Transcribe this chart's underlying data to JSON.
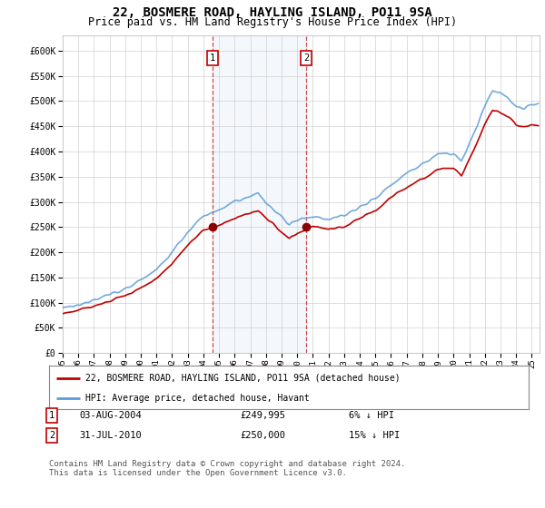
{
  "title": "22, BOSMERE ROAD, HAYLING ISLAND, PO11 9SA",
  "subtitle": "Price paid vs. HM Land Registry's House Price Index (HPI)",
  "title_fontsize": 10,
  "subtitle_fontsize": 8.5,
  "ylabel_ticks": [
    "£0",
    "£50K",
    "£100K",
    "£150K",
    "£200K",
    "£250K",
    "£300K",
    "£350K",
    "£400K",
    "£450K",
    "£500K",
    "£550K",
    "£600K"
  ],
  "ytick_values": [
    0,
    50000,
    100000,
    150000,
    200000,
    250000,
    300000,
    350000,
    400000,
    450000,
    500000,
    550000,
    600000
  ],
  "ylim": [
    0,
    630000
  ],
  "xlim_start": 1995.0,
  "xlim_end": 2025.5,
  "sale1_x": 2004.59,
  "sale1_y": 249995,
  "sale2_x": 2010.58,
  "sale2_y": 250000,
  "sale1_label": "03-AUG-2004",
  "sale1_price": "£249,995",
  "sale1_hpi": "6% ↓ HPI",
  "sale2_label": "31-JUL-2010",
  "sale2_price": "£250,000",
  "sale2_hpi": "15% ↓ HPI",
  "legend_line1": "22, BOSMERE ROAD, HAYLING ISLAND, PO11 9SA (detached house)",
  "legend_line2": "HPI: Average price, detached house, Havant",
  "footnote": "Contains HM Land Registry data © Crown copyright and database right 2024.\nThis data is licensed under the Open Government Licence v3.0.",
  "hpi_color": "#5b9bd5",
  "price_color": "#c00000",
  "shade_color": "#ddeeff",
  "marker_color": "#8b0000",
  "grid_color": "#d0d0d0",
  "background_color": "#ffffff"
}
